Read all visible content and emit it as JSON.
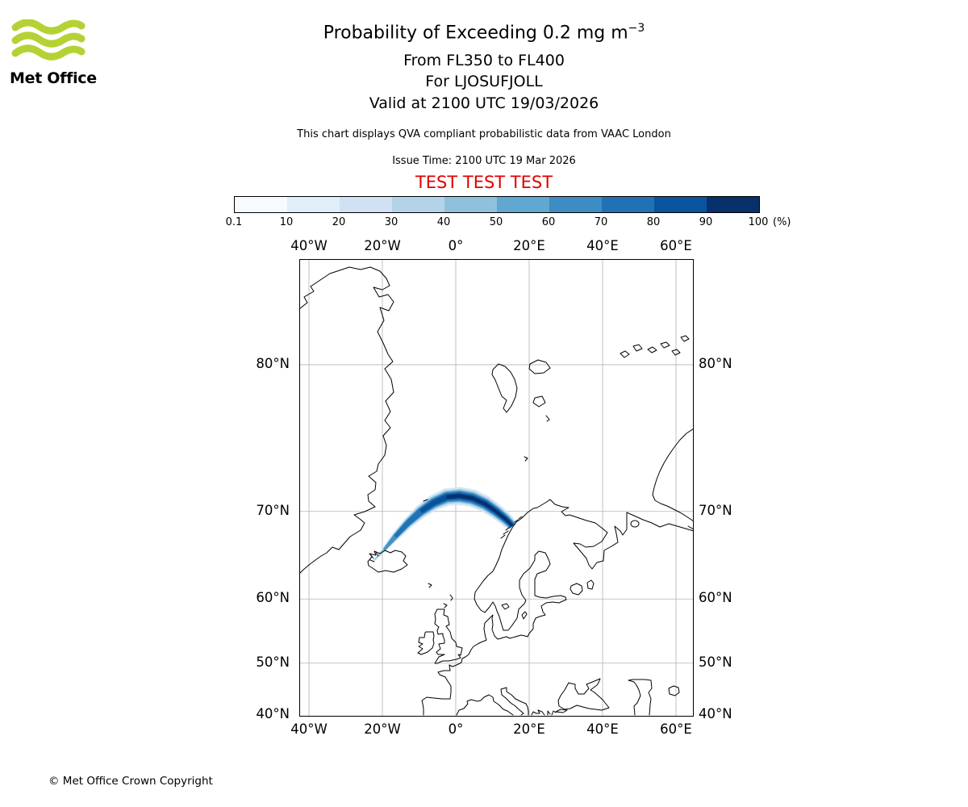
{
  "logo": {
    "brand": "Met Office",
    "wave_color": "#b4d234"
  },
  "header": {
    "title_main": "Probability of Exceeding 0.2 mg m",
    "title_sup": "−3",
    "subtitle_fl": "From FL350 to FL400",
    "subtitle_volcano": "For LJOSUFJOLL",
    "subtitle_valid": "Valid at 2100 UTC 19/03/2026",
    "note": "This chart displays QVA compliant probabilistic data from VAAC London",
    "issue_time": "Issue Time: 2100 UTC 19 Mar 2026",
    "test_banner": "TEST TEST TEST",
    "test_color": "#e10000"
  },
  "footer": {
    "copyright": "© Met Office Crown Copyright"
  },
  "chart_data": {
    "type": "heatmap",
    "title": "Probability of Exceeding 0.2 mg m⁻³ from FL350 to FL400 for LJOSUFJOLL, valid at 2100 UTC 19/03/2026",
    "legend": {
      "tick_labels": [
        "0.1",
        "10",
        "20",
        "30",
        "40",
        "50",
        "60",
        "70",
        "80",
        "90",
        "100"
      ],
      "unit": "(%)",
      "segment_colors": [
        "#f7fbff",
        "#e1edf8",
        "#cfe1f2",
        "#b3d3e8",
        "#8fc1dd",
        "#60a7d2",
        "#3d8dc4",
        "#2172b5",
        "#0a549e",
        "#08306b"
      ]
    },
    "x_axis": {
      "tick_values": [
        -40,
        -20,
        0,
        20,
        40,
        60
      ],
      "tick_labels": [
        "40°W",
        "20°W",
        "0°",
        "20°E",
        "40°E",
        "60°E"
      ],
      "range_deg": [
        -42.6,
        64.9
      ]
    },
    "y_axis": {
      "tick_values": [
        80,
        70,
        60,
        50,
        40
      ],
      "tick_labels": [
        "80°N",
        "70°N",
        "60°N",
        "50°N",
        "40°N"
      ],
      "range_deg": [
        40,
        84
      ],
      "projection": "mercator"
    },
    "grid": true,
    "plume": {
      "source_volcano": "LJOSUFJOLL",
      "description": "Ash plume arcs east-northeast from Ljosufjoll (Iceland) over the Norwegian Sea, reaching the Norwegian coast near Lofoten; highest exceedance probability along the plume core, lightest fringes at the edges",
      "centerline_lonlat": [
        [
          -22.2,
          64.9
        ],
        [
          -19.5,
          66.1
        ],
        [
          -16.5,
          67.5
        ],
        [
          -13,
          68.9
        ],
        [
          -9.5,
          70
        ],
        [
          -6,
          70.8
        ],
        [
          -2.5,
          71.3
        ],
        [
          1,
          71.4
        ],
        [
          4.5,
          71.2
        ],
        [
          8,
          70.7
        ],
        [
          11,
          70
        ],
        [
          13.5,
          69.3
        ],
        [
          15.5,
          68.6
        ]
      ],
      "halfwidth_deg": [
        0.05,
        0.15,
        0.28,
        0.38,
        0.48,
        0.56,
        0.62,
        0.65,
        0.63,
        0.58,
        0.53,
        0.48,
        0.4
      ],
      "probability_percent_range": [
        0.1,
        100
      ]
    }
  }
}
